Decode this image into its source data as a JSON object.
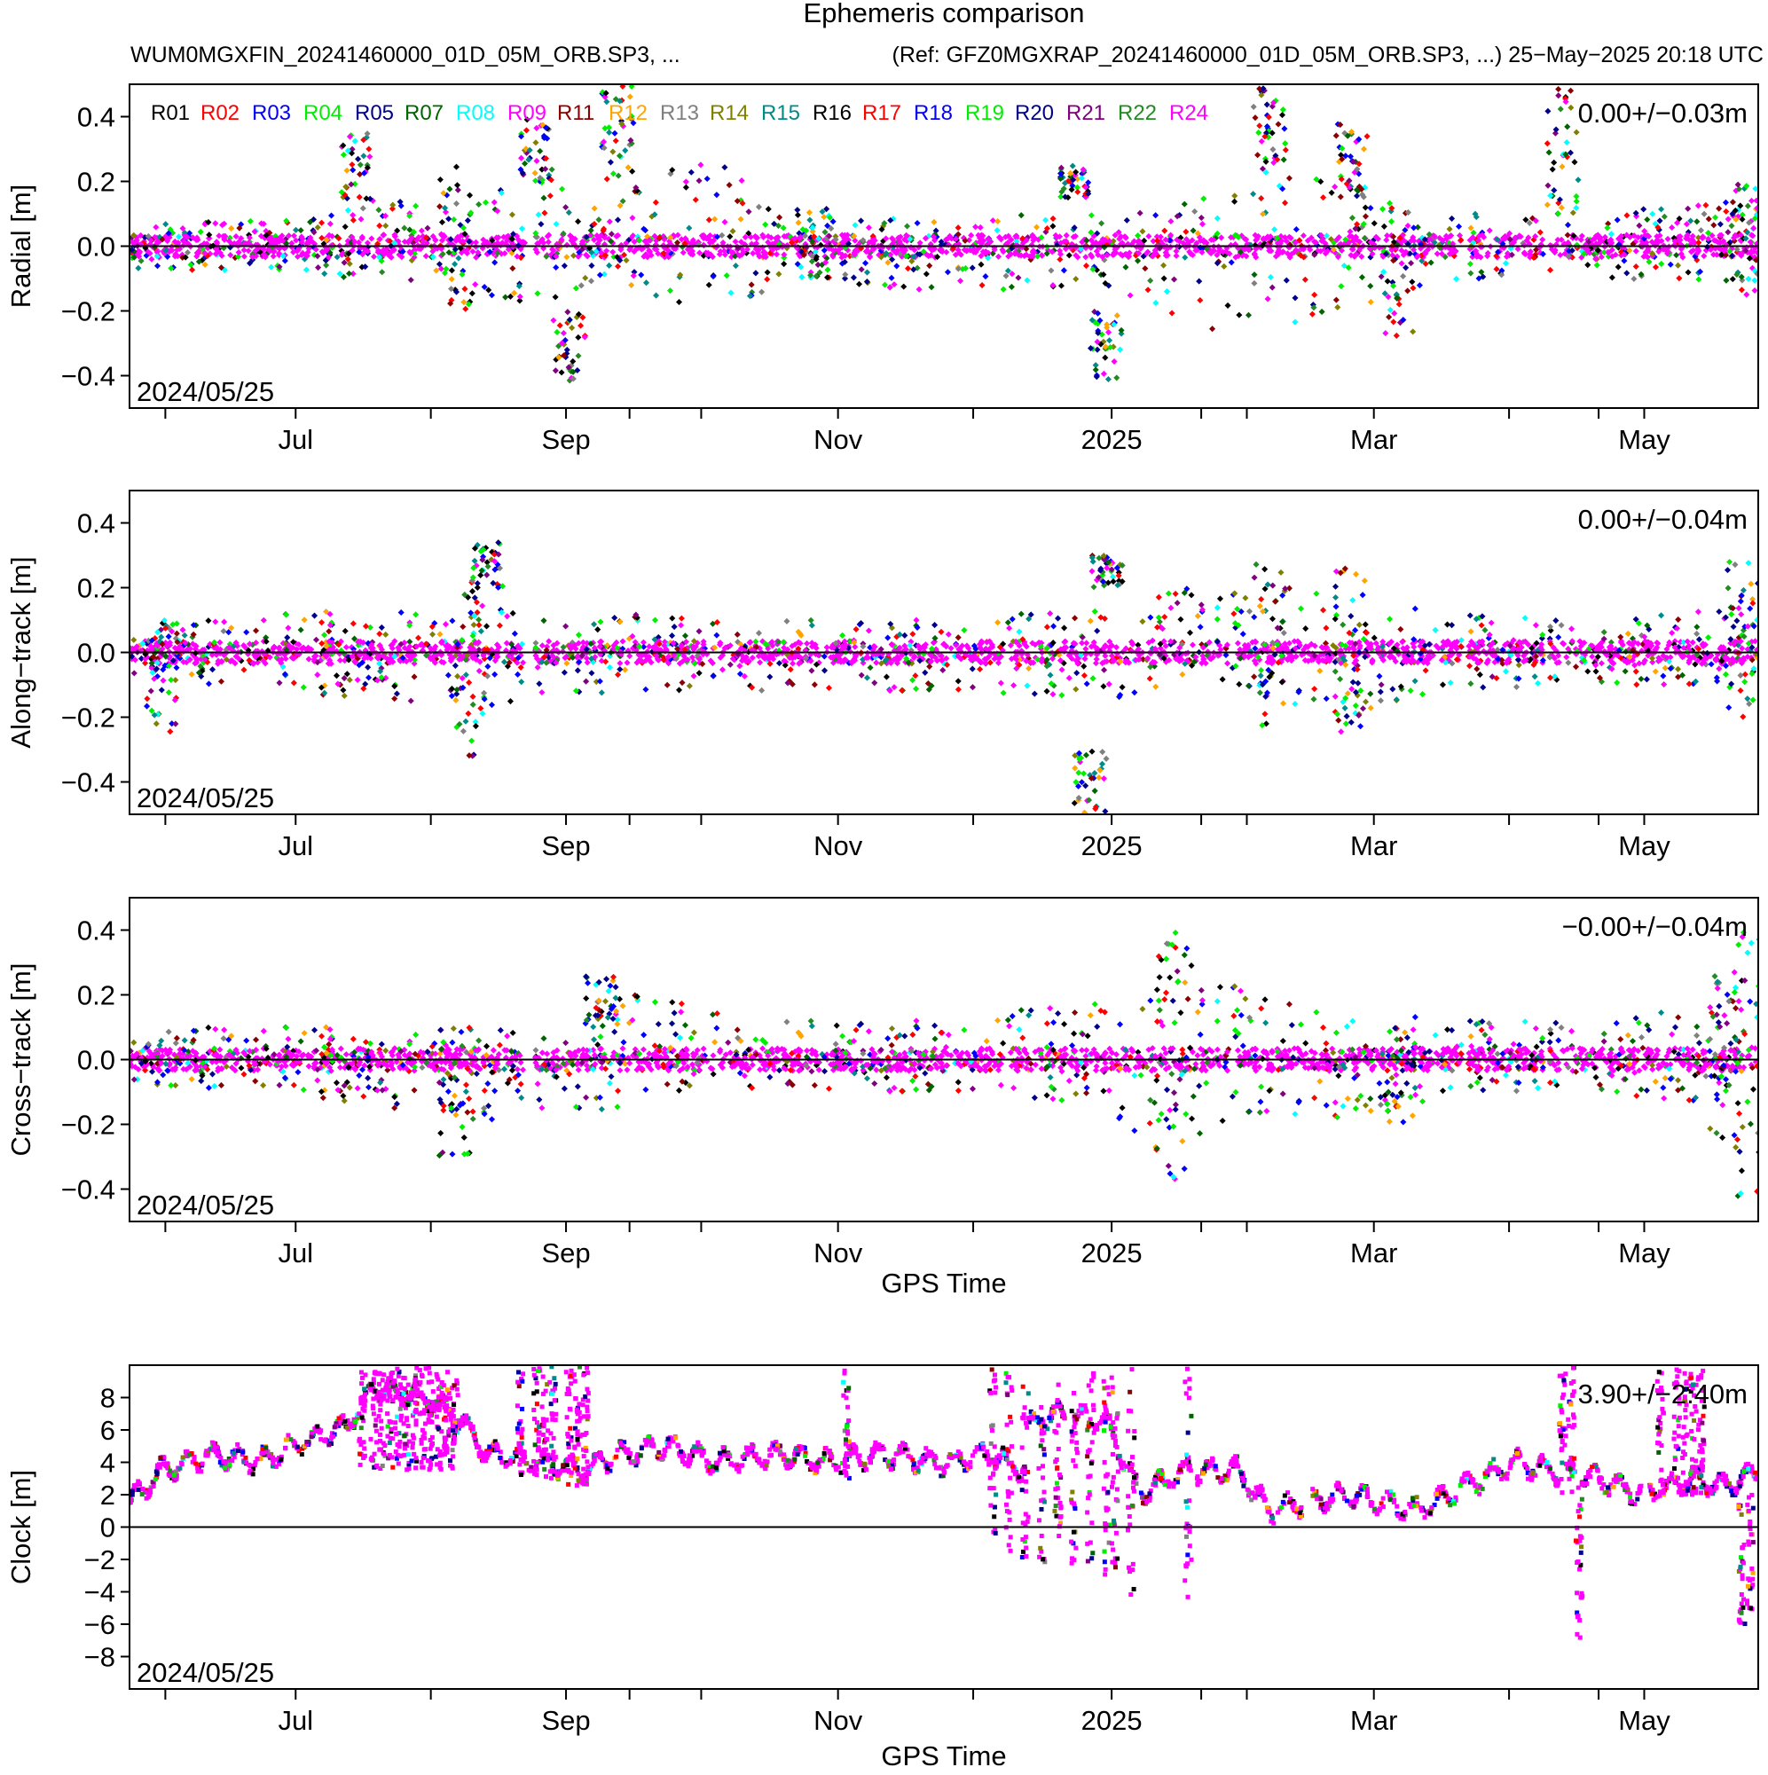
{
  "header": {
    "title": "Ephemeris comparison",
    "left_text": "WUM0MGXFIN_20241460000_01D_05M_ORB.SP3, ...",
    "right_text": "(Ref: GFZ0MGXRAP_20241460000_01D_05M_ORB.SP3, ...) 25−May−2025 20:18 UTC"
  },
  "chart_data": [
    {
      "type": "scatter",
      "ylabel": "Radial [m]",
      "xlabel": "",
      "ylim": [
        -0.5,
        0.5
      ],
      "yticks": [
        "−0.4",
        "−0.2",
        "0.0",
        "0.2",
        "0.4"
      ],
      "ytick_values": [
        -0.4,
        -0.2,
        0.0,
        0.2,
        0.4
      ],
      "stat": "0.00+/−0.03m",
      "date": "2024/05/25",
      "show_legend": true,
      "envelope": [
        [
          0.0,
          -0.07,
          0.07
        ],
        [
          0.1,
          -0.08,
          0.08
        ],
        [
          0.18,
          -0.12,
          0.15
        ],
        [
          0.25,
          -0.18,
          0.2
        ],
        [
          0.3,
          -0.12,
          0.15
        ],
        [
          0.35,
          -0.2,
          0.3
        ],
        [
          0.42,
          -0.1,
          0.08
        ],
        [
          0.5,
          -0.15,
          0.1
        ],
        [
          0.6,
          -0.12,
          0.1
        ],
        [
          0.65,
          -0.25,
          0.15
        ],
        [
          0.7,
          -0.3,
          0.2
        ],
        [
          0.75,
          -0.2,
          0.25
        ],
        [
          0.82,
          -0.1,
          0.1
        ],
        [
          0.9,
          -0.1,
          0.1
        ],
        [
          1.0,
          -0.12,
          0.15
        ]
      ],
      "spikes": [
        [
          0.14,
          0.1,
          0.35
        ],
        [
          0.2,
          -0.2,
          0.25
        ],
        [
          0.25,
          0.2,
          0.4
        ],
        [
          0.27,
          -0.42,
          -0.2
        ],
        [
          0.3,
          0.2,
          0.5
        ],
        [
          0.42,
          -0.1,
          0.12
        ],
        [
          0.58,
          0.15,
          0.25
        ],
        [
          0.6,
          -0.42,
          -0.2
        ],
        [
          0.7,
          0.2,
          0.5
        ],
        [
          0.75,
          0.15,
          0.38
        ],
        [
          0.78,
          -0.3,
          0.12
        ],
        [
          0.88,
          0.1,
          0.5
        ],
        [
          0.99,
          -0.15,
          0.2
        ]
      ]
    },
    {
      "type": "scatter",
      "ylabel": "Along−track [m]",
      "xlabel": "",
      "ylim": [
        -0.5,
        0.5
      ],
      "yticks": [
        "−0.4",
        "−0.2",
        "0.0",
        "0.2",
        "0.4"
      ],
      "ytick_values": [
        -0.4,
        -0.2,
        0.0,
        0.2,
        0.4
      ],
      "stat": "0.00+/−0.04m",
      "date": "2024/05/25",
      "show_legend": false,
      "envelope": [
        [
          0.0,
          -0.08,
          0.08
        ],
        [
          0.1,
          -0.12,
          0.12
        ],
        [
          0.2,
          -0.18,
          0.15
        ],
        [
          0.3,
          -0.12,
          0.12
        ],
        [
          0.4,
          -0.12,
          0.1
        ],
        [
          0.5,
          -0.12,
          0.1
        ],
        [
          0.6,
          -0.15,
          0.15
        ],
        [
          0.65,
          -0.1,
          0.2
        ],
        [
          0.7,
          -0.18,
          0.2
        ],
        [
          0.75,
          -0.2,
          0.2
        ],
        [
          0.8,
          -0.12,
          0.12
        ],
        [
          0.9,
          -0.1,
          0.1
        ],
        [
          1.0,
          -0.1,
          0.15
        ]
      ],
      "spikes": [
        [
          0.02,
          -0.25,
          0.1
        ],
        [
          0.21,
          -0.33,
          0.2
        ],
        [
          0.22,
          0.2,
          0.34
        ],
        [
          0.59,
          -0.5,
          -0.3
        ],
        [
          0.6,
          0.2,
          0.3
        ],
        [
          0.7,
          -0.25,
          0.28
        ],
        [
          0.75,
          -0.25,
          0.28
        ],
        [
          0.99,
          -0.22,
          0.28
        ]
      ]
    },
    {
      "type": "scatter",
      "ylabel": "Cross−track [m]",
      "xlabel": "GPS Time",
      "ylim": [
        -0.5,
        0.5
      ],
      "yticks": [
        "−0.4",
        "−0.2",
        "0.0",
        "0.2",
        "0.4"
      ],
      "ytick_values": [
        -0.4,
        -0.2,
        0.0,
        0.2,
        0.4
      ],
      "stat": "−0.00+/−0.04m",
      "date": "2024/05/25",
      "show_legend": false,
      "envelope": [
        [
          0.0,
          -0.08,
          0.1
        ],
        [
          0.1,
          -0.1,
          0.1
        ],
        [
          0.2,
          -0.2,
          0.1
        ],
        [
          0.3,
          -0.15,
          0.1
        ],
        [
          0.3,
          -0.1,
          0.22
        ],
        [
          0.4,
          -0.1,
          0.12
        ],
        [
          0.5,
          -0.1,
          0.12
        ],
        [
          0.6,
          -0.15,
          0.2
        ],
        [
          0.64,
          -0.35,
          0.38
        ],
        [
          0.7,
          -0.2,
          0.18
        ],
        [
          0.75,
          -0.18,
          0.15
        ],
        [
          0.82,
          -0.1,
          0.12
        ],
        [
          0.9,
          -0.1,
          0.12
        ],
        [
          1.0,
          -0.15,
          0.2
        ]
      ],
      "spikes": [
        [
          0.2,
          -0.3,
          0.1
        ],
        [
          0.29,
          0.1,
          0.26
        ],
        [
          0.64,
          -0.37,
          0.4
        ],
        [
          0.78,
          -0.2,
          0.1
        ],
        [
          0.98,
          -0.25,
          0.3
        ],
        [
          0.995,
          -0.45,
          0.42
        ]
      ]
    },
    {
      "type": "scatter",
      "ylabel": "Clock [m]",
      "xlabel": "GPS Time",
      "ylim": [
        -10,
        10
      ],
      "yticks": [
        "−8",
        "−6",
        "−4",
        "−2",
        "0",
        "2",
        "4",
        "6",
        "8"
      ],
      "ytick_values": [
        -8,
        -6,
        -4,
        -2,
        0,
        2,
        4,
        6,
        8
      ],
      "stat": "3.90+/−2.40m",
      "date": "2024/05/25",
      "show_legend": false,
      "trend": [
        [
          0.0,
          1.5
        ],
        [
          0.02,
          3.5
        ],
        [
          0.05,
          4.5
        ],
        [
          0.08,
          4.0
        ],
        [
          0.1,
          5.0
        ],
        [
          0.13,
          6.0
        ],
        [
          0.15,
          8.5
        ],
        [
          0.18,
          8.0
        ],
        [
          0.2,
          7.0
        ],
        [
          0.22,
          4.5
        ],
        [
          0.25,
          4.0
        ],
        [
          0.28,
          3.5
        ],
        [
          0.3,
          4.5
        ],
        [
          0.33,
          5.0
        ],
        [
          0.36,
          4.0
        ],
        [
          0.4,
          4.5
        ],
        [
          0.43,
          4.0
        ],
        [
          0.46,
          4.5
        ],
        [
          0.5,
          4.0
        ],
        [
          0.53,
          4.5
        ],
        [
          0.55,
          3.5
        ],
        [
          0.5,
          4.0
        ],
        [
          0.57,
          7.0
        ],
        [
          0.6,
          6.5
        ],
        [
          0.62,
          2.0
        ],
        [
          0.65,
          3.5
        ],
        [
          0.68,
          3.5
        ],
        [
          0.7,
          1.0
        ],
        [
          0.72,
          1.5
        ],
        [
          0.75,
          2.0
        ],
        [
          0.77,
          1.5
        ],
        [
          0.79,
          1.0
        ],
        [
          0.82,
          2.5
        ],
        [
          0.85,
          4.0
        ],
        [
          0.87,
          3.5
        ],
        [
          0.9,
          3.0
        ],
        [
          0.93,
          2.0
        ],
        [
          0.96,
          3.0
        ],
        [
          0.98,
          2.5
        ],
        [
          1.0,
          3.5
        ]
      ],
      "jumps": [
        [
          0.143,
          3.5,
          9.9
        ],
        [
          0.15,
          3.5,
          9.9
        ],
        [
          0.155,
          3.5,
          9.9
        ],
        [
          0.16,
          3.5,
          9.9
        ],
        [
          0.165,
          3.5,
          9.9
        ],
        [
          0.17,
          3.5,
          9.9
        ],
        [
          0.175,
          3.5,
          9.9
        ],
        [
          0.18,
          3.5,
          9.9
        ],
        [
          0.185,
          3.5,
          9.9
        ],
        [
          0.19,
          3.5,
          9.9
        ],
        [
          0.195,
          3.5,
          9.9
        ],
        [
          0.2,
          3.5,
          9.9
        ],
        [
          0.24,
          3.0,
          9.9
        ],
        [
          0.25,
          3.0,
          9.9
        ],
        [
          0.255,
          3.0,
          9.9
        ],
        [
          0.26,
          3.0,
          9.9
        ],
        [
          0.27,
          2.5,
          9.9
        ],
        [
          0.275,
          2.5,
          9.9
        ],
        [
          0.28,
          2.5,
          9.9
        ],
        [
          0.44,
          3.0,
          9.9
        ],
        [
          0.53,
          -1.0,
          9.9
        ],
        [
          0.54,
          -1.5,
          9.5
        ],
        [
          0.55,
          -2.0,
          9.5
        ],
        [
          0.56,
          -2.5,
          9.5
        ],
        [
          0.57,
          -2.5,
          9.0
        ],
        [
          0.58,
          -3.0,
          8.5
        ],
        [
          0.59,
          -2.5,
          9.5
        ],
        [
          0.6,
          -3.0,
          9.5
        ],
        [
          0.605,
          -2.5,
          9.5
        ],
        [
          0.615,
          -4.5,
          9.9
        ],
        [
          0.65,
          -5.0,
          9.9
        ],
        [
          0.88,
          2.0,
          9.9
        ],
        [
          0.885,
          2.0,
          9.9
        ],
        [
          0.89,
          -7.0,
          2.0
        ],
        [
          0.94,
          2.0,
          9.9
        ],
        [
          0.95,
          2.0,
          9.9
        ],
        [
          0.955,
          2.0,
          9.9
        ],
        [
          0.96,
          2.0,
          9.9
        ],
        [
          0.965,
          2.0,
          9.9
        ],
        [
          0.99,
          -6.0,
          2.0
        ],
        [
          0.995,
          -6.0,
          2.5
        ]
      ]
    }
  ],
  "x_axis": {
    "ticks": [
      "Jul",
      "Sep",
      "Nov",
      "2025",
      "Mar",
      "May"
    ]
  },
  "legend": {
    "entries": [
      {
        "label": "R01",
        "color": "#000000"
      },
      {
        "label": "R02",
        "color": "#ff0000"
      },
      {
        "label": "R03",
        "color": "#0000ff"
      },
      {
        "label": "R04",
        "color": "#00ee00"
      },
      {
        "label": "R05",
        "color": "#00008b"
      },
      {
        "label": "R07",
        "color": "#006400"
      },
      {
        "label": "R08",
        "color": "#00ffff"
      },
      {
        "label": "R09",
        "color": "#ff00ff"
      },
      {
        "label": "R11",
        "color": "#8b0000"
      },
      {
        "label": "R12",
        "color": "#ffa500"
      },
      {
        "label": "R13",
        "color": "#808080"
      },
      {
        "label": "R14",
        "color": "#808000"
      },
      {
        "label": "R15",
        "color": "#008b8b"
      },
      {
        "label": "R16",
        "color": "#000000"
      },
      {
        "label": "R17",
        "color": "#ff0000"
      },
      {
        "label": "R18",
        "color": "#0000ff"
      },
      {
        "label": "R19",
        "color": "#00ee00"
      },
      {
        "label": "R20",
        "color": "#00008b"
      },
      {
        "label": "R21",
        "color": "#800080"
      },
      {
        "label": "R22",
        "color": "#228b22"
      },
      {
        "label": "R24",
        "color": "#ff00ff"
      }
    ]
  }
}
